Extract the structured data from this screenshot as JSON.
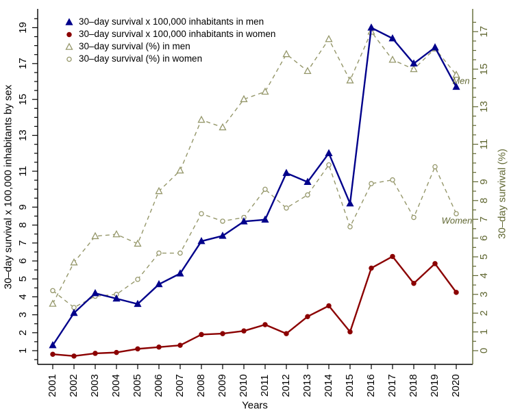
{
  "chart_data": {
    "type": "line",
    "x": [
      2001,
      2002,
      2003,
      2004,
      2005,
      2006,
      2007,
      2008,
      2009,
      2010,
      2011,
      2012,
      2013,
      2014,
      2015,
      2016,
      2017,
      2018,
      2019,
      2020
    ],
    "xlabel": "Years",
    "ylabel_left": "30–day survival x 100,000 inhabitants by sex",
    "ylabel_right": "30–day survival (%)",
    "grid": false,
    "legend_position": "top-left",
    "ylim_left": [
      0.2,
      20
    ],
    "ylim_right": [
      0,
      18.2
    ],
    "yticks_left": [
      1,
      2,
      3,
      4,
      5,
      6,
      7,
      8,
      9,
      11,
      13,
      15,
      17,
      19
    ],
    "yticks_right": [
      0,
      1,
      2,
      3,
      4,
      5,
      6,
      7,
      8,
      9,
      11,
      13,
      15,
      17
    ],
    "axis_color_left": "#000000",
    "axis_color_right": "#5F6630",
    "series": [
      {
        "id": "men-rate",
        "legend_label": "30–day survival x 100,000 inhabitants in men",
        "axis": "left",
        "color": "#00008B",
        "marker": "filled-triangle",
        "line_style": "solid",
        "line_width": 2.4,
        "values": [
          1.3,
          3.1,
          4.2,
          3.9,
          3.6,
          4.7,
          5.3,
          7.1,
          7.4,
          8.2,
          8.3,
          10.9,
          10.4,
          12.0,
          9.2,
          19.0,
          18.4,
          17.0,
          17.9,
          15.7
        ]
      },
      {
        "id": "women-rate",
        "legend_label": "30–day survival x 100,000 inhabitants in women",
        "axis": "left",
        "color": "#8B0000",
        "marker": "filled-circle",
        "line_style": "solid",
        "line_width": 2.4,
        "values": [
          0.8,
          0.7,
          0.85,
          0.9,
          1.1,
          1.2,
          1.3,
          1.9,
          1.95,
          2.1,
          2.45,
          1.95,
          2.9,
          3.5,
          2.05,
          5.6,
          6.25,
          4.75,
          5.85,
          4.25
        ]
      },
      {
        "id": "men-pct",
        "legend_label": "30–day survival (%) in men",
        "axis": "right",
        "color": "#95976A",
        "marker": "open-triangle",
        "line_style": "dashed",
        "line_width": 1.4,
        "values": [
          2.5,
          4.7,
          6.1,
          6.2,
          5.7,
          8.5,
          9.6,
          12.3,
          11.9,
          13.4,
          13.8,
          15.8,
          14.9,
          16.6,
          14.4,
          17.0,
          15.5,
          15.0,
          16.1,
          14.7
        ]
      },
      {
        "id": "women-pct",
        "legend_label": "30–day survival (%) in women",
        "axis": "right",
        "color": "#95976A",
        "marker": "open-circle",
        "line_style": "dashed",
        "line_width": 1.4,
        "values": [
          3.2,
          2.3,
          2.9,
          3.0,
          3.8,
          5.2,
          5.2,
          7.3,
          6.9,
          7.1,
          8.6,
          7.6,
          8.3,
          9.9,
          6.6,
          8.9,
          9.1,
          7.1,
          9.8,
          7.3
        ]
      }
    ],
    "annotations": [
      {
        "text": "Men",
        "series": "men-rate",
        "x": 2020
      },
      {
        "text": "Women",
        "series": "women-pct",
        "x": 2020
      }
    ]
  }
}
